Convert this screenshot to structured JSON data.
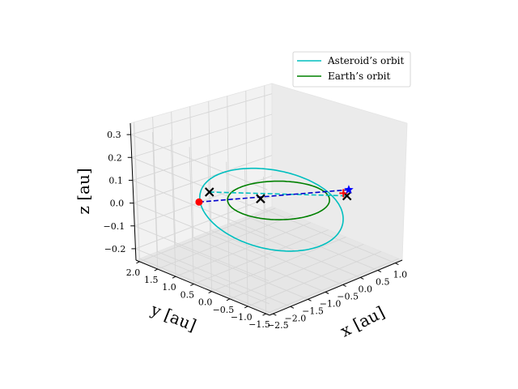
{
  "chart_data": {
    "type": "3d-line",
    "title": "",
    "xlabel": "x [au]",
    "ylabel": "y [au]",
    "zlabel": "z [au]",
    "xlim": [
      -2.6,
      1.2
    ],
    "ylim": [
      -1.6,
      2.1
    ],
    "zlim": [
      -0.25,
      0.35
    ],
    "xticks": [
      "−2.5",
      "−2.0",
      "−1.5",
      "−1.0",
      "−0.5",
      "0.0",
      "0.5",
      "1.0"
    ],
    "xtick_values": [
      -2.5,
      -2.0,
      -1.5,
      -1.0,
      -0.5,
      0.0,
      0.5,
      1.0
    ],
    "yticks": [
      "−1.5",
      "−1.0",
      "−0.5",
      "0.0",
      "0.5",
      "1.0",
      "1.5",
      "2.0"
    ],
    "ytick_values": [
      -1.5,
      -1.0,
      -0.5,
      0.0,
      0.5,
      1.0,
      1.5,
      2.0
    ],
    "zticks": [
      "−0.2",
      "−0.1",
      "0.0",
      "0.1",
      "0.2",
      "0.3"
    ],
    "ztick_values": [
      -0.2,
      -0.1,
      0.0,
      0.1,
      0.2,
      0.3
    ],
    "grid": true,
    "legend_position": "top-right",
    "series": [
      {
        "name": "Asteroid’s orbit",
        "kind": "ellipse",
        "color": "#00bfbf",
        "orbit": {
          "semi_major_au": 1.46,
          "eccentricity": 0.26,
          "inclination_deg": 10,
          "perihelion_angle_deg": 25,
          "node_angle_deg": 0
        }
      },
      {
        "name": "Earth’s orbit",
        "kind": "ellipse",
        "color": "#008000",
        "orbit": {
          "semi_major_au": 1.0,
          "eccentricity": 0.0,
          "inclination_deg": 0,
          "perihelion_angle_deg": 0,
          "node_angle_deg": 0
        }
      }
    ],
    "annotations": {
      "transfer_dashed_cyan": {
        "color": "#00bfbf",
        "from": [
          -1.9,
          0.7,
          0.1
        ],
        "to": [
          0.7,
          -0.5,
          0.0
        ]
      },
      "transfer_dashed_blue": {
        "color": "#0000cc",
        "from": [
          -1.6,
          1.3,
          0.0
        ],
        "to": [
          0.95,
          -0.3,
          0.0
        ]
      },
      "markers": [
        {
          "kind": "circle",
          "color": "#ff0000",
          "at": [
            -1.6,
            1.3,
            0.0
          ]
        },
        {
          "kind": "x",
          "color": "#000000",
          "at": [
            -1.9,
            0.7,
            0.1
          ]
        },
        {
          "kind": "x",
          "color": "#000000",
          "at": [
            -0.6,
            0.6,
            0.0
          ]
        },
        {
          "kind": "x",
          "color": "#000000",
          "at": [
            0.7,
            -0.5,
            0.0
          ]
        },
        {
          "kind": "plus",
          "color": "#ff0000",
          "at": [
            0.75,
            -0.35,
            0.0
          ]
        },
        {
          "kind": "star",
          "color": "#0000ff",
          "at": [
            0.95,
            -0.3,
            0.0
          ]
        }
      ]
    }
  }
}
